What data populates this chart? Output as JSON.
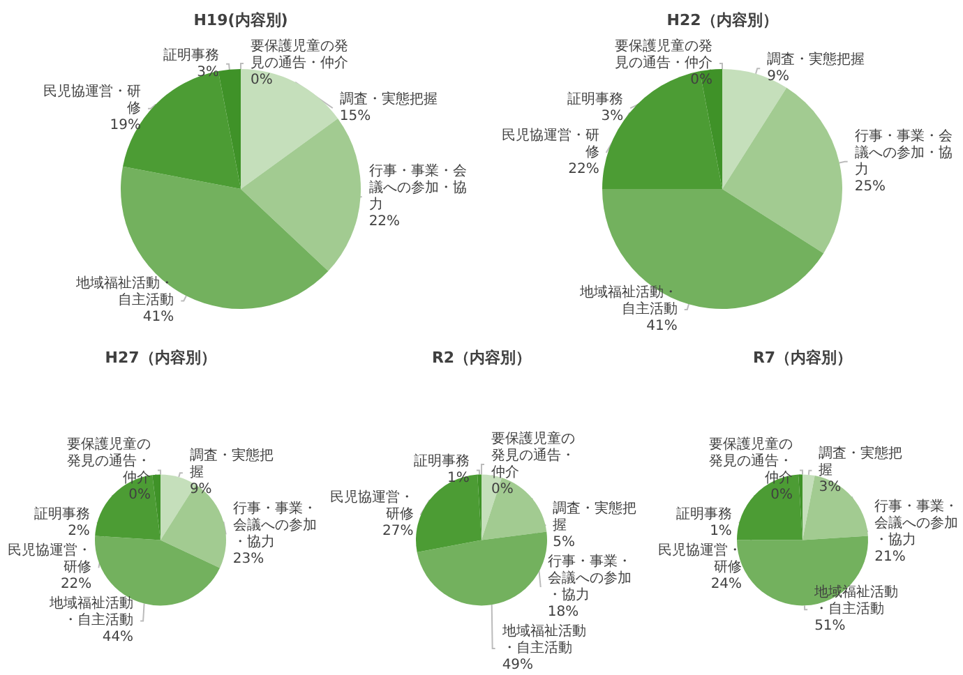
{
  "chart_data": [
    {
      "type": "pie",
      "title": "H19(内容別)",
      "categories": [
        "調査・実態把握",
        "行事・事業・会議への参加・協力",
        "地域福祉活動・自主活動",
        "民児協運営・研修",
        "証明事務",
        "要保護児童の発見の通告・仲介"
      ],
      "values": [
        15,
        22,
        41,
        19,
        3,
        0
      ],
      "value_labels": [
        "15%",
        "22%",
        "41%",
        "19%",
        "3%",
        "0%"
      ],
      "colors": [
        "#c5dfbb",
        "#a2cb91",
        "#73b15e",
        "#4c9c34",
        "#3f9228",
        "#2f7c22"
      ]
    },
    {
      "type": "pie",
      "title": "H22（内容別）",
      "categories": [
        "調査・実態把握",
        "行事・事業・会議への参加・協力",
        "地域福祉活動・自主活動",
        "民児協運営・研修",
        "証明事務",
        "要保護児童の発見の通告・仲介"
      ],
      "values": [
        9,
        25,
        41,
        22,
        3,
        0
      ],
      "value_labels": [
        "9%",
        "25%",
        "41%",
        "22%",
        "3%",
        "0%"
      ],
      "colors": [
        "#c5dfbb",
        "#a2cb91",
        "#73b15e",
        "#4c9c34",
        "#3f9228",
        "#2f7c22"
      ]
    },
    {
      "type": "pie",
      "title": "H27（内容別）",
      "categories": [
        "調査・実態把握",
        "行事・事業・会議への参加・協力",
        "地域福祉活動・自主活動",
        "民児協運営・研修",
        "証明事務",
        "要保護児童の発見の通告・仲介"
      ],
      "values": [
        9,
        23,
        44,
        22,
        2,
        0
      ],
      "value_labels": [
        "9%",
        "23%",
        "44%",
        "22%",
        "2%",
        "0%"
      ],
      "colors": [
        "#c5dfbb",
        "#a2cb91",
        "#73b15e",
        "#4c9c34",
        "#3f9228",
        "#2f7c22"
      ]
    },
    {
      "type": "pie",
      "title": "R2（内容別）",
      "categories": [
        "調査・実態把握",
        "行事・事業・会議への参加・協力",
        "地域福祉活動・自主活動",
        "民児協運営・研修",
        "証明事務",
        "要保護児童の発見の通告・仲介"
      ],
      "values": [
        5,
        18,
        49,
        27,
        1,
        0
      ],
      "value_labels": [
        "5%",
        "18%",
        "49%",
        "27%",
        "1%",
        "0%"
      ],
      "colors": [
        "#c5dfbb",
        "#a2cb91",
        "#73b15e",
        "#4c9c34",
        "#3f9228",
        "#2f7c22"
      ]
    },
    {
      "type": "pie",
      "title": "R7（内容別）",
      "categories": [
        "調査・実態把握",
        "行事・事業・会議への参加・協力",
        "地域福祉活動・自主活動",
        "民児協運営・研修",
        "証明事務",
        "要保護児童の発見の通告・仲介"
      ],
      "values": [
        3,
        21,
        51,
        24,
        1,
        0
      ],
      "value_labels": [
        "3%",
        "21%",
        "51%",
        "24%",
        "1%",
        "0%"
      ],
      "colors": [
        "#c5dfbb",
        "#a2cb91",
        "#73b15e",
        "#4c9c34",
        "#3f9228",
        "#2f7c22"
      ]
    }
  ]
}
